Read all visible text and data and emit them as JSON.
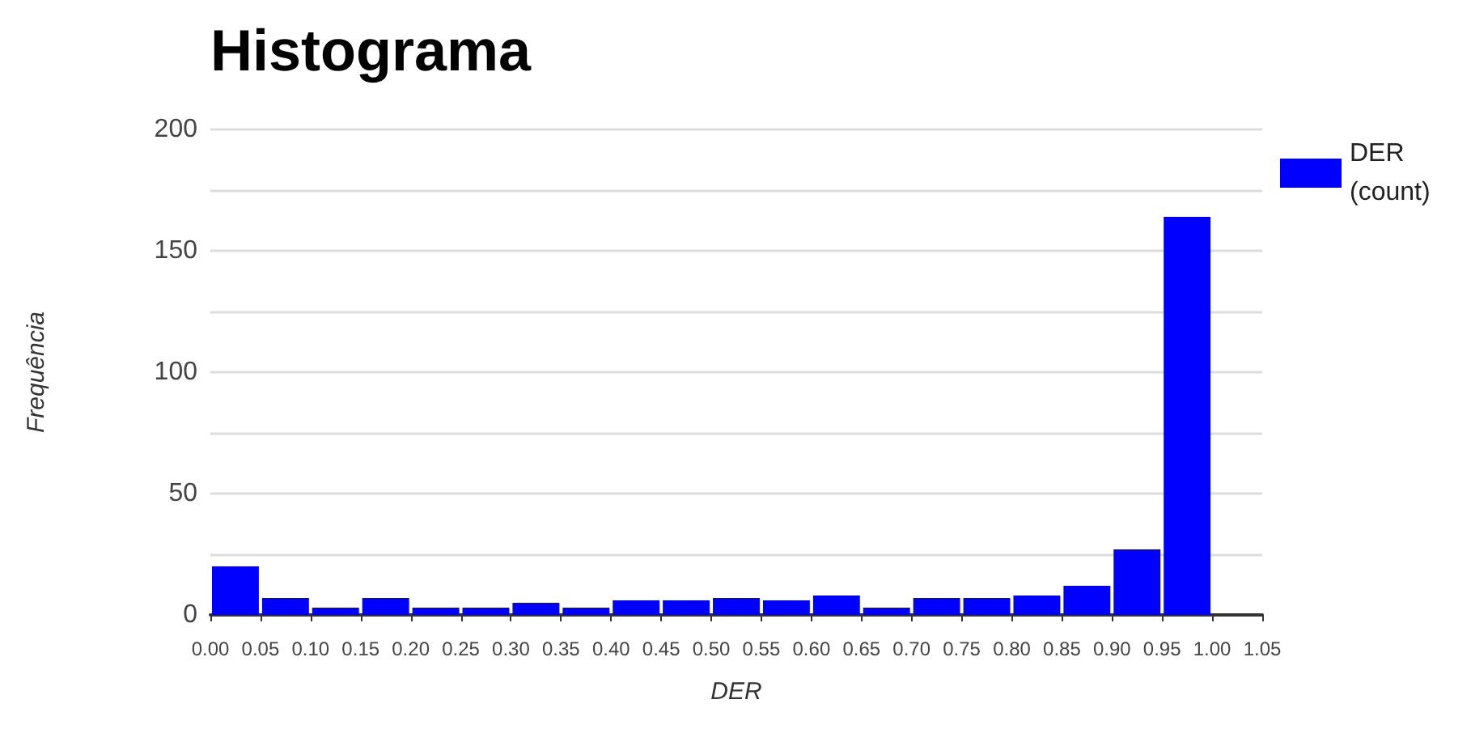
{
  "chart_data": {
    "type": "histogram",
    "title": "Histograma",
    "xlabel": "DER",
    "ylabel": "Frequência",
    "bins": [
      0,
      0.05,
      0.1,
      0.15,
      0.2,
      0.25,
      0.3,
      0.35,
      0.4,
      0.45,
      0.5,
      0.55,
      0.6,
      0.65,
      0.7,
      0.75,
      0.8,
      0.85,
      0.9,
      0.95,
      1.0,
      1.05
    ],
    "series": [
      {
        "name": "DER (count)",
        "color": "#0000ff",
        "values": [
          20,
          7,
          3,
          7,
          3,
          3,
          5,
          3,
          6,
          6,
          7,
          6,
          8,
          3,
          7,
          7,
          8,
          12,
          27,
          164,
          0
        ]
      }
    ],
    "xlim": [
      0,
      1.05
    ],
    "xticks": [
      {
        "value": 0,
        "label": "0.00"
      },
      {
        "value": 0.05,
        "label": "0.05"
      },
      {
        "value": 0.1,
        "label": "0.10"
      },
      {
        "value": 0.15,
        "label": "0.15"
      },
      {
        "value": 0.2,
        "label": "0.20"
      },
      {
        "value": 0.25,
        "label": "0.25"
      },
      {
        "value": 0.3,
        "label": "0.30"
      },
      {
        "value": 0.35,
        "label": "0.35"
      },
      {
        "value": 0.4,
        "label": "0.40"
      },
      {
        "value": 0.45,
        "label": "0.45"
      },
      {
        "value": 0.5,
        "label": "0.50"
      },
      {
        "value": 0.55,
        "label": "0.55"
      },
      {
        "value": 0.6,
        "label": "0.60"
      },
      {
        "value": 0.65,
        "label": "0.65"
      },
      {
        "value": 0.7,
        "label": "0.70"
      },
      {
        "value": 0.75,
        "label": "0.75"
      },
      {
        "value": 0.8,
        "label": "0.80"
      },
      {
        "value": 0.85,
        "label": "0.85"
      },
      {
        "value": 0.9,
        "label": "0.90"
      },
      {
        "value": 0.95,
        "label": "0.95"
      },
      {
        "value": 1.0,
        "label": "1.00"
      },
      {
        "value": 1.05,
        "label": "1.05"
      }
    ],
    "ylim": [
      0,
      200
    ],
    "yticks": [
      0,
      {
        "value": 25,
        "label": null
      },
      50,
      {
        "value": 75,
        "label": null
      },
      100,
      {
        "value": 125,
        "label": null
      },
      150,
      {
        "value": 175,
        "label": null
      },
      200
    ],
    "grid": "y",
    "legend": "top right"
  }
}
